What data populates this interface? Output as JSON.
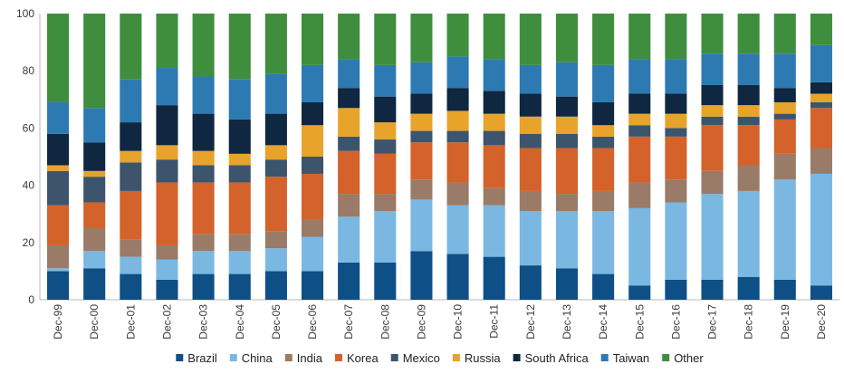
{
  "chart_data": {
    "type": "bar",
    "stacked": true,
    "title": "",
    "xlabel": "",
    "ylabel": "",
    "ylim": [
      0,
      100
    ],
    "yticks": [
      0,
      20,
      40,
      60,
      80,
      100
    ],
    "grid": false,
    "legend_position": "bottom",
    "categories": [
      "Dec-99",
      "Dec-00",
      "Dec-01",
      "Dec-02",
      "Dec-03",
      "Dec-04",
      "Dec-05",
      "Dec-06",
      "Dec-07",
      "Dec-08",
      "Dec-09",
      "Dec-10",
      "Dec-11",
      "Dec-12",
      "Dec-13",
      "Dec-14",
      "Dec-15",
      "Dec-16",
      "Dec-17",
      "Dec-18",
      "Dec-19",
      "Dec-20"
    ],
    "series": [
      {
        "name": "Brazil",
        "color": "#0e4f86",
        "values": [
          10,
          11,
          9,
          7,
          9,
          9,
          10,
          10,
          13,
          13,
          17,
          16,
          15,
          12,
          11,
          9,
          5,
          7,
          7,
          8,
          7,
          5
        ]
      },
      {
        "name": "China",
        "color": "#7ab8e2",
        "values": [
          1,
          6,
          6,
          7,
          8,
          8,
          8,
          12,
          16,
          18,
          18,
          17,
          18,
          19,
          20,
          22,
          27,
          27,
          30,
          30,
          35,
          39
        ]
      },
      {
        "name": "India",
        "color": "#9a7b67",
        "values": [
          8,
          8,
          6,
          5,
          6,
          6,
          6,
          6,
          8,
          6,
          7,
          8,
          6,
          7,
          6,
          7,
          9,
          8,
          8,
          9,
          9,
          9
        ]
      },
      {
        "name": "Korea",
        "color": "#d4622b",
        "values": [
          14,
          9,
          17,
          22,
          18,
          18,
          19,
          16,
          15,
          14,
          13,
          14,
          15,
          15,
          16,
          15,
          16,
          15,
          16,
          14,
          12,
          14
        ]
      },
      {
        "name": "Mexico",
        "color": "#3c556c",
        "values": [
          12,
          9,
          10,
          8,
          6,
          6,
          6,
          6,
          5,
          5,
          4,
          4,
          5,
          5,
          5,
          4,
          4,
          3,
          3,
          3,
          2,
          2
        ]
      },
      {
        "name": "Russia",
        "color": "#e8a32a",
        "values": [
          2,
          2,
          4,
          5,
          5,
          4,
          5,
          11,
          10,
          6,
          6,
          7,
          6,
          6,
          6,
          4,
          4,
          5,
          4,
          4,
          4,
          3
        ]
      },
      {
        "name": "South Africa",
        "color": "#0f2740",
        "values": [
          11,
          10,
          10,
          14,
          13,
          12,
          11,
          8,
          7,
          9,
          7,
          8,
          8,
          8,
          7,
          8,
          7,
          7,
          7,
          7,
          5,
          4
        ]
      },
      {
        "name": "Taiwan",
        "color": "#2d7ab3",
        "values": [
          11,
          12,
          15,
          13,
          13,
          14,
          14,
          13,
          10,
          11,
          11,
          11,
          11,
          10,
          12,
          13,
          12,
          12,
          11,
          11,
          12,
          13
        ]
      },
      {
        "name": "Other",
        "color": "#3f8e3e",
        "values": [
          31,
          33,
          23,
          19,
          22,
          23,
          21,
          18,
          16,
          18,
          17,
          15,
          16,
          18,
          17,
          18,
          16,
          16,
          14,
          14,
          14,
          11
        ]
      }
    ]
  }
}
